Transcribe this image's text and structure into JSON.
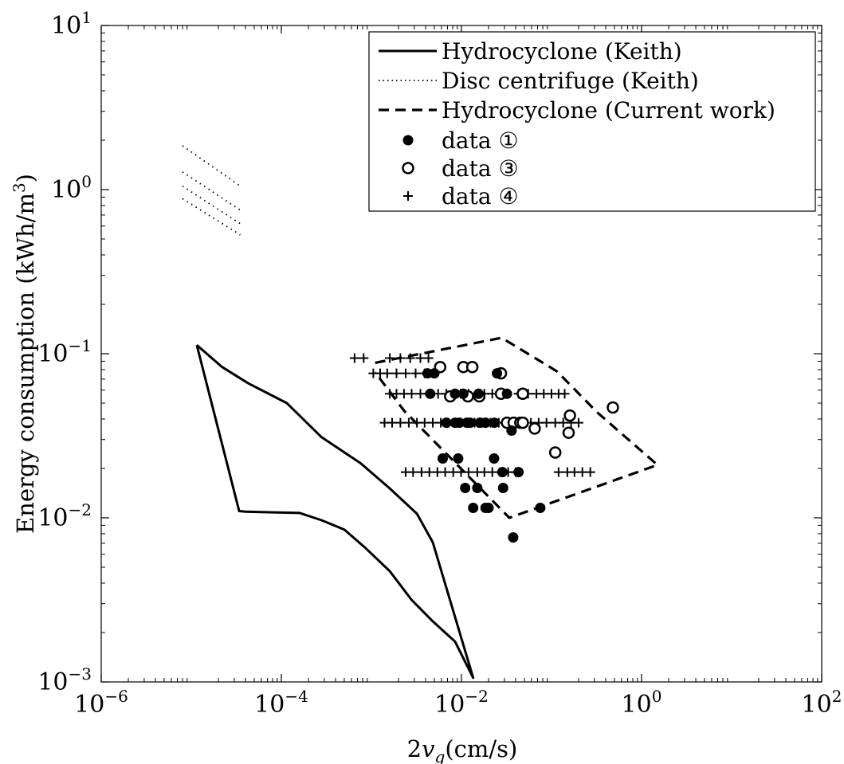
{
  "chart_data": {
    "type": "scatter",
    "title": "",
    "xlabel": "2v_g(cm/s)",
    "ylabel": "Energy consumption (kWh/m^3)",
    "x_scale": "log",
    "y_scale": "log",
    "xlim": [
      1e-06,
      100
    ],
    "ylim": [
      0.001,
      10
    ],
    "x_ticks": [
      {
        "value": 1e-06,
        "base": "10",
        "exp": "−6"
      },
      {
        "value": 0.0001,
        "base": "10",
        "exp": "−4"
      },
      {
        "value": 0.01,
        "base": "10",
        "exp": "−2"
      },
      {
        "value": 1,
        "base": "10",
        "exp": "0"
      },
      {
        "value": 100,
        "base": "10",
        "exp": "2"
      }
    ],
    "y_ticks": [
      {
        "value": 0.001,
        "base": "10",
        "exp": "−3"
      },
      {
        "value": 0.01,
        "base": "10",
        "exp": "−2"
      },
      {
        "value": 0.1,
        "base": "10",
        "exp": "−1"
      },
      {
        "value": 1,
        "base": "10",
        "exp": "0"
      },
      {
        "value": 10,
        "base": "10",
        "exp": "1"
      }
    ],
    "grid": false,
    "legend_position": "top-right",
    "series": [
      {
        "name": "Hydrocyclone (Keith)",
        "style": "solid",
        "x": [
          1.15e-05,
          2.2e-05,
          4.3e-05,
          0.000115,
          0.00028,
          0.00076,
          0.0016,
          0.0032,
          0.0048,
          0.0135,
          0.0085,
          0.0048,
          0.0028,
          0.0016,
          0.00087,
          0.0005,
          0.00028,
          0.00016,
          8e-05,
          4e-05,
          3.4e-05,
          1.15e-05
        ],
        "y": [
          0.113,
          0.083,
          0.066,
          0.05,
          0.031,
          0.0215,
          0.0151,
          0.0106,
          0.0071,
          0.00106,
          0.00176,
          0.00234,
          0.00316,
          0.00473,
          0.00651,
          0.00848,
          0.00967,
          0.0107,
          0.0108,
          0.0109,
          0.011,
          0.113
        ]
      },
      {
        "name": "Disc centrifuge (Keith)",
        "style": "dotted",
        "segments": [
          {
            "x": [
              8e-06,
              3.5e-05
            ],
            "y": [
              1.85,
              1.05
            ]
          },
          {
            "x": [
              8e-06,
              3.5e-05
            ],
            "y": [
              1.28,
              0.75
            ]
          },
          {
            "x": [
              8e-06,
              3.5e-05
            ],
            "y": [
              1.05,
              0.62
            ]
          },
          {
            "x": [
              8e-06,
              3.5e-05
            ],
            "y": [
              0.88,
              0.53
            ]
          }
        ]
      },
      {
        "name": "Hydrocyclone (Current work)",
        "style": "dashed",
        "x": [
          0.0011,
          0.028,
          0.115,
          0.32,
          1.5,
          0.034,
          0.0023,
          0.0011
        ],
        "y": [
          0.088,
          0.125,
          0.078,
          0.044,
          0.021,
          0.01,
          0.045,
          0.077
        ]
      },
      {
        "name": "data ①",
        "marker": "filled-circle",
        "x": [
          0.0042,
          0.005,
          0.0095,
          0.0125,
          0.016,
          0.0232,
          0.0248,
          0.0068,
          0.0085,
          0.0115,
          0.016,
          0.0185,
          0.036,
          0.0045,
          0.0085,
          0.0105,
          0.0155,
          0.032,
          0.0062,
          0.0092,
          0.023,
          0.0285,
          0.043,
          0.011,
          0.015,
          0.029,
          0.0185,
          0.0135,
          0.02,
          0.0375,
          0.075
        ],
        "y": [
          0.076,
          0.076,
          0.038,
          0.038,
          0.038,
          0.038,
          0.076,
          0.038,
          0.038,
          0.038,
          0.038,
          0.038,
          0.034,
          0.057,
          0.057,
          0.057,
          0.057,
          0.057,
          0.023,
          0.023,
          0.023,
          0.019,
          0.019,
          0.0152,
          0.0152,
          0.0152,
          0.0115,
          0.0115,
          0.0115,
          0.0076,
          0.0115
        ]
      },
      {
        "name": "data ③",
        "marker": "open-circle",
        "x": [
          0.0105,
          0.0132,
          0.0275,
          0.0058,
          0.0075,
          0.0118,
          0.0158,
          0.0275,
          0.048,
          0.032,
          0.038,
          0.045,
          0.048,
          0.065,
          0.155,
          0.16,
          0.11,
          0.48
        ],
        "y": [
          0.083,
          0.083,
          0.076,
          0.083,
          0.055,
          0.055,
          0.055,
          0.057,
          0.057,
          0.038,
          0.038,
          0.038,
          0.038,
          0.035,
          0.033,
          0.042,
          0.025,
          0.047
        ]
      },
      {
        "name": "data ④",
        "marker": "plus",
        "x": [
          0.00065,
          0.00082,
          0.0016,
          0.0021,
          0.0027,
          0.0035,
          0.0043,
          0.00105,
          0.00125,
          0.0015,
          0.0019,
          0.0024,
          0.0031,
          0.0039,
          0.0016,
          0.0019,
          0.0023,
          0.0028,
          0.0035,
          0.0043,
          0.0055,
          0.0068,
          0.0082,
          0.0098,
          0.012,
          0.015,
          0.018,
          0.022,
          0.043,
          0.055,
          0.068,
          0.082,
          0.1,
          0.12,
          0.14,
          0.0014,
          0.0017,
          0.0021,
          0.0026,
          0.0032,
          0.0039,
          0.0048,
          0.0059,
          0.0072,
          0.0088,
          0.011,
          0.014,
          0.017,
          0.021,
          0.026,
          0.032,
          0.039,
          0.048,
          0.059,
          0.072,
          0.088,
          0.11,
          0.135,
          0.165,
          0.2,
          0.0024,
          0.0029,
          0.0036,
          0.0044,
          0.0054,
          0.0066,
          0.0081,
          0.0099,
          0.012,
          0.015,
          0.018,
          0.022,
          0.027,
          0.033,
          0.04,
          0.12,
          0.15,
          0.18,
          0.22,
          0.27
        ],
        "y": [
          0.094,
          0.094,
          0.094,
          0.094,
          0.094,
          0.094,
          0.094,
          0.076,
          0.076,
          0.076,
          0.076,
          0.076,
          0.076,
          0.076,
          0.057,
          0.057,
          0.057,
          0.057,
          0.057,
          0.057,
          0.057,
          0.057,
          0.057,
          0.057,
          0.057,
          0.057,
          0.057,
          0.057,
          0.057,
          0.057,
          0.057,
          0.057,
          0.057,
          0.057,
          0.057,
          0.038,
          0.038,
          0.038,
          0.038,
          0.038,
          0.038,
          0.038,
          0.038,
          0.038,
          0.038,
          0.038,
          0.038,
          0.038,
          0.038,
          0.038,
          0.038,
          0.038,
          0.038,
          0.038,
          0.038,
          0.038,
          0.038,
          0.038,
          0.038,
          0.038,
          0.019,
          0.019,
          0.019,
          0.019,
          0.019,
          0.019,
          0.019,
          0.019,
          0.019,
          0.019,
          0.019,
          0.019,
          0.019,
          0.019,
          0.019,
          0.019,
          0.019,
          0.019,
          0.019,
          0.019
        ]
      }
    ]
  }
}
